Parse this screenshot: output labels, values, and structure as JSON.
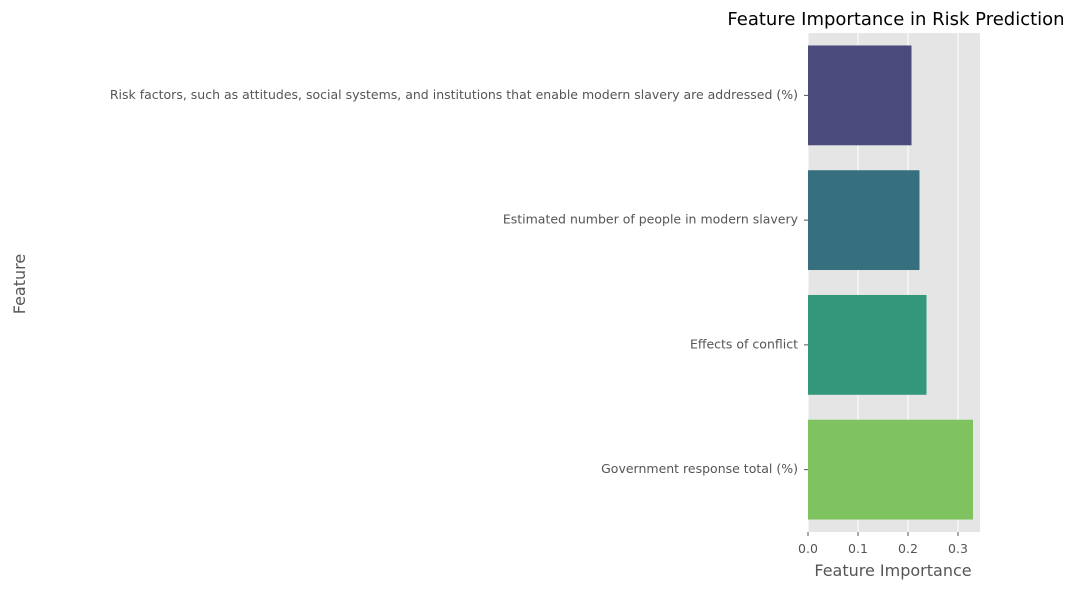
{
  "chart_data": {
    "type": "bar",
    "orientation": "horizontal",
    "title": "Feature Importance in Risk Prediction",
    "xlabel": "Feature Importance",
    "ylabel": "Feature",
    "categories": [
      "Risk factors, such as attitudes, social systems, and institutions that enable modern slavery are addressed (%)",
      "Estimated number of people in modern slavery",
      "Effects of conflict",
      "Government response total (%)"
    ],
    "values": [
      0.207,
      0.223,
      0.237,
      0.33
    ],
    "colors": [
      "#4a4a7d",
      "#36707f",
      "#33977b",
      "#7ec35f"
    ],
    "xlim": [
      0,
      0.344
    ],
    "xticks": [
      0.0,
      0.1,
      0.2,
      0.3
    ],
    "xtick_labels": [
      "0.0",
      "0.1",
      "0.2",
      "0.3"
    ],
    "grid": true,
    "background": "#e5e5e5",
    "grid_color": "#ffffff",
    "style": "ggplot"
  }
}
